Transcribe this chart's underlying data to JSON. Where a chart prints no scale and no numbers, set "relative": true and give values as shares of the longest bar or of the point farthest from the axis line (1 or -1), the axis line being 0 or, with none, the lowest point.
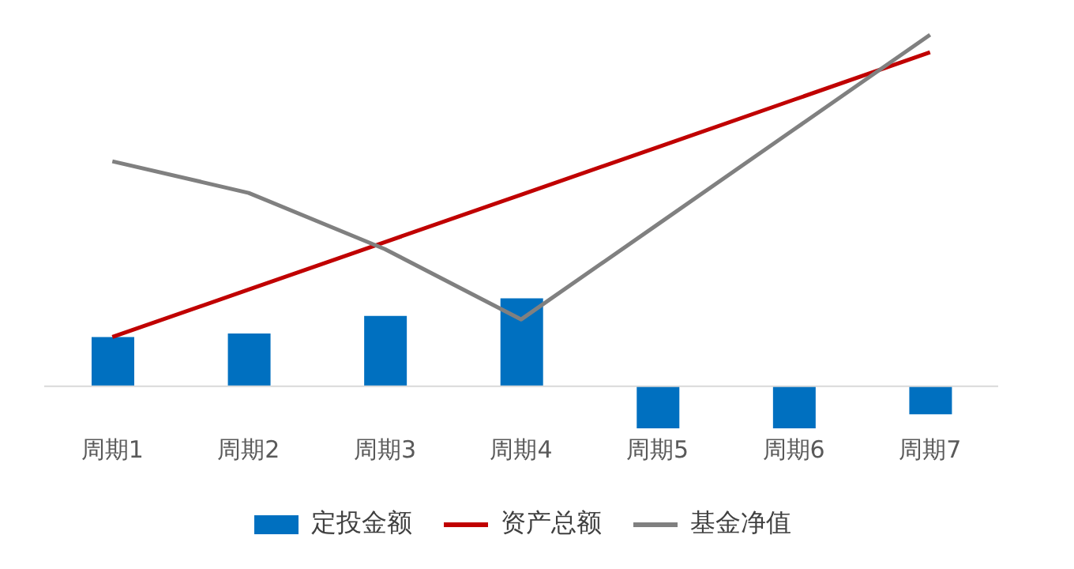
{
  "chart_data": {
    "type": "bar",
    "relative": true,
    "categories": [
      "周期1",
      "周期2",
      "周期3",
      "周期4",
      "周期5",
      "周期6",
      "周期7"
    ],
    "series": [
      {
        "name": "定投金额",
        "color": "#0070c0",
        "values": [
          0.14,
          0.15,
          0.2,
          0.25,
          -0.12,
          -0.12,
          -0.08
        ]
      },
      {
        "name": "资产总额",
        "type": "line",
        "color": "#c00000",
        "values": [
          0.14,
          0.275,
          0.41,
          0.545,
          0.68,
          0.815,
          0.95
        ]
      },
      {
        "name": "基金净值",
        "type": "line",
        "color": "#808080",
        "values": [
          0.64,
          0.55,
          0.39,
          0.19,
          0.46,
          0.73,
          1
        ]
      }
    ],
    "legend": "bottom",
    "grid": false
  }
}
